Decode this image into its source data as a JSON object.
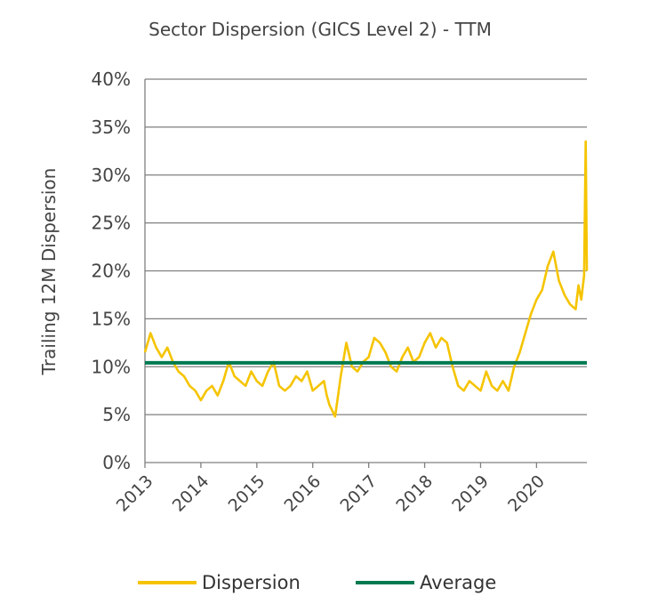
{
  "chart_data": {
    "type": "line",
    "title": "Sector Dispersion (GICS Level 2) -  TTM",
    "ylabel": "Trailing 12M Dispersion",
    "xlabel": "",
    "ylim": [
      0,
      40
    ],
    "xlim": [
      2013,
      2020.9
    ],
    "y_ticks": [
      "0%",
      "5%",
      "10%",
      "15%",
      "20%",
      "25%",
      "30%",
      "35%",
      "40%"
    ],
    "y_tick_values": [
      0,
      5,
      10,
      15,
      20,
      25,
      30,
      35,
      40
    ],
    "x_ticks": [
      "2013",
      "2014",
      "2015",
      "2016",
      "2017",
      "2018",
      "2019",
      "2020"
    ],
    "x_tick_values": [
      2013,
      2014,
      2015,
      2016,
      2017,
      2018,
      2019,
      2020
    ],
    "grid": "horizontal",
    "legend_position": "bottom",
    "series": [
      {
        "name": "Dispersion",
        "color": "#F5C400",
        "x": [
          2013.0,
          2013.1,
          2013.2,
          2013.3,
          2013.4,
          2013.5,
          2013.6,
          2013.7,
          2013.8,
          2013.9,
          2014.0,
          2014.1,
          2014.2,
          2014.3,
          2014.4,
          2014.5,
          2014.6,
          2014.7,
          2014.8,
          2014.9,
          2015.0,
          2015.1,
          2015.2,
          2015.3,
          2015.4,
          2015.5,
          2015.6,
          2015.7,
          2015.8,
          2015.9,
          2016.0,
          2016.1,
          2016.2,
          2016.25,
          2016.3,
          2016.4,
          2016.5,
          2016.6,
          2016.7,
          2016.8,
          2016.9,
          2017.0,
          2017.1,
          2017.2,
          2017.3,
          2017.4,
          2017.5,
          2017.6,
          2017.7,
          2017.8,
          2017.9,
          2018.0,
          2018.1,
          2018.2,
          2018.3,
          2018.4,
          2018.5,
          2018.6,
          2018.7,
          2018.8,
          2018.9,
          2019.0,
          2019.1,
          2019.2,
          2019.3,
          2019.4,
          2019.5,
          2019.6,
          2019.7,
          2019.8,
          2019.9,
          2020.0,
          2020.1,
          2020.2,
          2020.3,
          2020.4,
          2020.5,
          2020.6,
          2020.7,
          2020.75,
          2020.8,
          2020.85,
          2020.88,
          2020.9
        ],
        "values": [
          11.5,
          13.5,
          12.0,
          11.0,
          12.0,
          10.5,
          9.5,
          9.0,
          8.0,
          7.5,
          6.5,
          7.5,
          8.0,
          7.0,
          8.5,
          10.5,
          9.0,
          8.5,
          8.0,
          9.5,
          8.5,
          8.0,
          9.5,
          10.5,
          8.0,
          7.5,
          8.0,
          9.0,
          8.5,
          9.5,
          7.5,
          8.0,
          8.5,
          7.0,
          6.0,
          4.8,
          9.0,
          12.5,
          10.0,
          9.5,
          10.5,
          11.0,
          13.0,
          12.5,
          11.5,
          10.0,
          9.5,
          11.0,
          12.0,
          10.5,
          11.0,
          12.5,
          13.5,
          12.0,
          13.0,
          12.5,
          10.0,
          8.0,
          7.5,
          8.5,
          8.0,
          7.5,
          9.5,
          8.0,
          7.5,
          8.5,
          7.5,
          10.0,
          11.5,
          13.5,
          15.5,
          17.0,
          18.0,
          20.5,
          22.0,
          19.0,
          17.5,
          16.5,
          16.0,
          18.5,
          17.0,
          19.5,
          33.5,
          20.0
        ]
      },
      {
        "name": "Average",
        "color": "#007A50",
        "x": [
          2013.0,
          2020.9
        ],
        "values": [
          10.4,
          10.4
        ]
      }
    ]
  },
  "legend": {
    "items": [
      {
        "label": "Dispersion",
        "color": "#F5C400"
      },
      {
        "label": "Average",
        "color": "#007A50"
      }
    ]
  }
}
